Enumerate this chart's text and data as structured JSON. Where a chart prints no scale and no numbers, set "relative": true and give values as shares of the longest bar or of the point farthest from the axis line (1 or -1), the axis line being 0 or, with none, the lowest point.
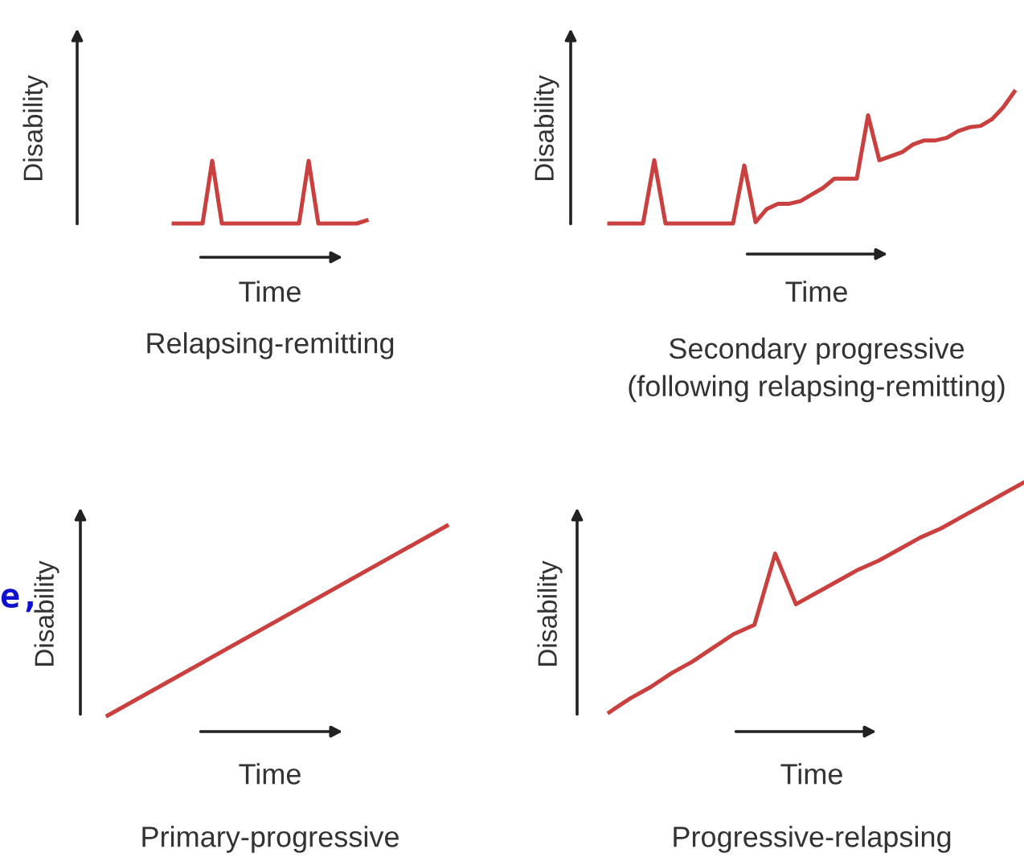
{
  "chart_data": [
    {
      "type": "line",
      "relative": true,
      "title": "Relapsing-remitting",
      "xlabel": "Time",
      "ylabel": "Disability",
      "categories": [
        null,
        null,
        null,
        null,
        null,
        null,
        null,
        null,
        null,
        null,
        null,
        null,
        null,
        null,
        null,
        null,
        null,
        null,
        null,
        null,
        null
      ],
      "series": [
        {
          "color": "#c9403e",
          "values": [
            0,
            0,
            0,
            0,
            1,
            0,
            0,
            0,
            0,
            0,
            0,
            0,
            0,
            0,
            1,
            0,
            0,
            0,
            0,
            0,
            0.05
          ]
        }
      ]
    },
    {
      "type": "line",
      "relative": true,
      "title": "Secondary progressive\n(following relapsing-remitting)",
      "xlabel": "Time",
      "ylabel": "Disability",
      "categories": [
        null,
        null,
        null,
        null,
        null,
        null,
        null,
        null,
        null,
        null,
        null,
        null,
        null,
        null,
        null,
        null,
        null,
        null,
        null,
        null,
        null,
        null,
        null,
        null,
        null,
        null,
        null,
        null,
        null,
        null,
        null,
        null,
        null,
        null,
        null,
        null,
        null
      ],
      "series": [
        {
          "color": "#c9403e",
          "values": [
            0,
            0,
            0,
            0,
            0.48,
            0,
            0,
            0,
            0,
            0,
            0,
            0,
            0.44,
            0.01,
            0.11,
            0.15,
            0.15,
            0.17,
            0.22,
            0.27,
            0.34,
            0.34,
            0.34,
            0.82,
            0.48,
            0.51,
            0.54,
            0.6,
            0.63,
            0.63,
            0.65,
            0.7,
            0.73,
            0.74,
            0.79,
            0.88,
            1
          ]
        }
      ]
    },
    {
      "type": "line",
      "relative": true,
      "title": "Primary-progressive",
      "xlabel": "Time",
      "ylabel": "Disability",
      "annotations": [
        "e,"
      ],
      "categories": [
        null,
        null
      ],
      "series": [
        {
          "color": "#c9403e",
          "values": [
            0,
            1
          ]
        }
      ]
    },
    {
      "type": "line",
      "relative": true,
      "title": "Progressive-relapsing",
      "xlabel": "Time",
      "ylabel": "Disability",
      "categories": [
        null,
        null,
        null,
        null,
        null,
        null,
        null,
        null,
        null,
        null,
        null,
        null,
        null,
        null,
        null,
        null,
        null,
        null,
        null,
        null,
        null
      ],
      "series": [
        {
          "color": "#c9403e",
          "values": [
            0,
            0.06,
            0.11,
            0.17,
            0.22,
            0.28,
            0.34,
            0.38,
            0.69,
            0.47,
            0.52,
            0.57,
            0.62,
            0.66,
            0.71,
            0.76,
            0.8,
            0.85,
            0.9,
            0.95,
            1
          ]
        }
      ]
    }
  ]
}
